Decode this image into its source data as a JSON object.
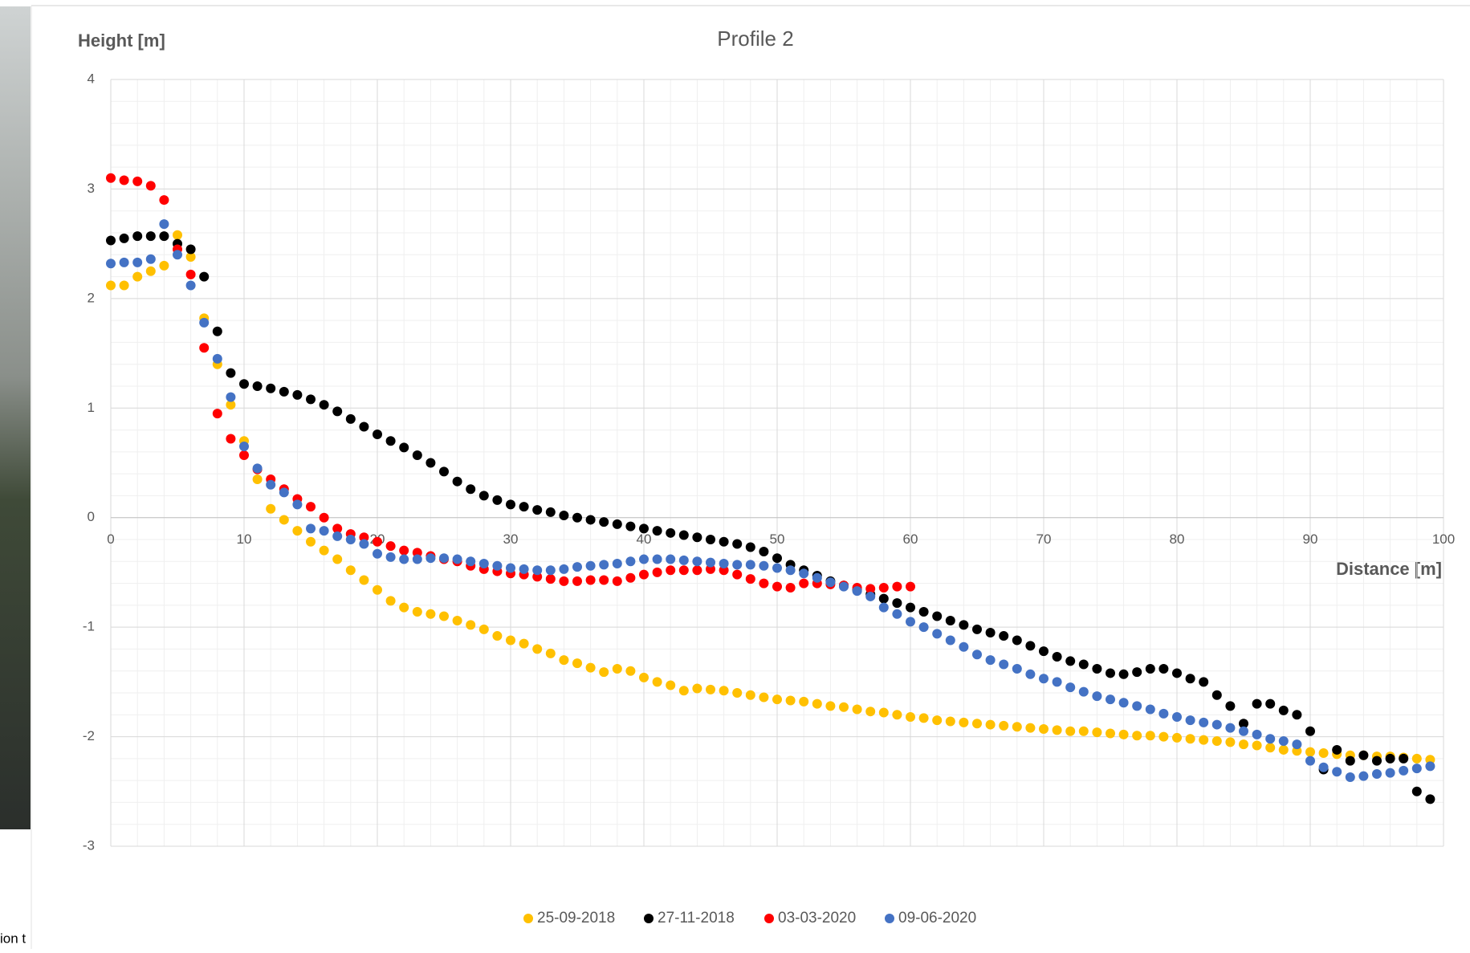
{
  "fragment_text": "ion t",
  "chart_data": {
    "type": "scatter",
    "title": "Profile 2",
    "y_label": "Height [m]",
    "x_label": "Distance [m]",
    "xlim": [
      0,
      100
    ],
    "xticks": [
      0,
      10,
      20,
      30,
      40,
      50,
      60,
      70,
      80,
      90,
      100
    ],
    "ylim": [
      -3,
      4
    ],
    "yticks": [
      -3,
      -2,
      -1,
      0,
      1,
      2,
      3,
      4
    ],
    "grid": true,
    "minor_grid": true,
    "legend": "bottom",
    "x": [
      0,
      1,
      2,
      3,
      4,
      5,
      6,
      7,
      8,
      9,
      10,
      11,
      12,
      13,
      14,
      15,
      16,
      17,
      18,
      19,
      20,
      21,
      22,
      23,
      24,
      25,
      26,
      27,
      28,
      29,
      30,
      31,
      32,
      33,
      34,
      35,
      36,
      37,
      38,
      39,
      40,
      41,
      42,
      43,
      44,
      45,
      46,
      47,
      48,
      49,
      50,
      51,
      52,
      53,
      54,
      55,
      56,
      57,
      58,
      59,
      60,
      61,
      62,
      63,
      64,
      65,
      66,
      67,
      68,
      69,
      70,
      71,
      72,
      73,
      74,
      75,
      76,
      77,
      78,
      79,
      80,
      81,
      82,
      83,
      84,
      85,
      86,
      87,
      88,
      89,
      90,
      91,
      92,
      93,
      94,
      95,
      96,
      97,
      98,
      99
    ],
    "series": [
      {
        "name": "25-09-2018",
        "color": "#FFC000",
        "values": [
          2.12,
          2.12,
          2.2,
          2.25,
          2.3,
          2.58,
          2.38,
          1.82,
          1.4,
          1.03,
          0.7,
          0.35,
          0.08,
          -0.02,
          -0.12,
          -0.22,
          -0.3,
          -0.38,
          -0.48,
          -0.57,
          -0.66,
          -0.76,
          -0.82,
          -0.86,
          -0.88,
          -0.9,
          -0.94,
          -0.98,
          -1.02,
          -1.08,
          -1.12,
          -1.15,
          -1.2,
          -1.24,
          -1.3,
          -1.33,
          -1.37,
          -1.41,
          -1.38,
          -1.4,
          -1.46,
          -1.5,
          -1.53,
          -1.58,
          -1.56,
          -1.57,
          -1.58,
          -1.6,
          -1.62,
          -1.64,
          -1.66,
          -1.67,
          -1.68,
          -1.7,
          -1.72,
          -1.73,
          -1.75,
          -1.77,
          -1.78,
          -1.8,
          -1.82,
          -1.83,
          -1.85,
          -1.86,
          -1.87,
          -1.88,
          -1.89,
          -1.9,
          -1.91,
          -1.92,
          -1.93,
          -1.94,
          -1.95,
          -1.95,
          -1.96,
          -1.97,
          -1.98,
          -1.99,
          -1.99,
          -2.0,
          -2.01,
          -2.02,
          -2.03,
          -2.04,
          -2.05,
          -2.07,
          -2.08,
          -2.1,
          -2.12,
          -2.13,
          -2.14,
          -2.15,
          -2.16,
          -2.17,
          -2.17,
          -2.18,
          -2.18,
          -2.19,
          -2.2,
          -2.21
        ]
      },
      {
        "name": "27-11-2018",
        "color": "#000000",
        "values": [
          2.53,
          2.55,
          2.57,
          2.57,
          2.57,
          2.5,
          2.45,
          2.2,
          1.7,
          1.32,
          1.22,
          1.2,
          1.18,
          1.15,
          1.12,
          1.08,
          1.03,
          0.97,
          0.9,
          0.83,
          0.76,
          0.7,
          0.64,
          0.57,
          0.5,
          0.42,
          0.33,
          0.26,
          0.2,
          0.16,
          0.12,
          0.1,
          0.07,
          0.05,
          0.02,
          0.0,
          -0.02,
          -0.04,
          -0.06,
          -0.08,
          -0.1,
          -0.12,
          -0.14,
          -0.16,
          -0.18,
          -0.2,
          -0.22,
          -0.24,
          -0.27,
          -0.31,
          -0.37,
          -0.43,
          -0.48,
          -0.53,
          -0.58,
          -0.62,
          -0.66,
          -0.7,
          -0.74,
          -0.78,
          -0.82,
          -0.86,
          -0.9,
          -0.94,
          -0.98,
          -1.02,
          -1.05,
          -1.08,
          -1.12,
          -1.17,
          -1.22,
          -1.27,
          -1.31,
          -1.34,
          -1.38,
          -1.42,
          -1.43,
          -1.41,
          -1.38,
          -1.38,
          -1.42,
          -1.47,
          -1.5,
          -1.62,
          -1.72,
          -1.88,
          -1.7,
          -1.7,
          -1.76,
          -1.8,
          -1.95,
          -2.3,
          -2.12,
          -2.22,
          -2.17,
          -2.22,
          -2.2,
          -2.2,
          -2.5,
          -2.57
        ]
      },
      {
        "name": "03-03-2020",
        "color": "#FF0000",
        "values": [
          3.1,
          3.08,
          3.07,
          3.03,
          2.9,
          2.45,
          2.22,
          1.55,
          0.95,
          0.72,
          0.57,
          0.44,
          0.35,
          0.26,
          0.17,
          0.1,
          0.0,
          -0.1,
          -0.15,
          -0.18,
          -0.22,
          -0.26,
          -0.3,
          -0.32,
          -0.35,
          -0.38,
          -0.4,
          -0.44,
          -0.47,
          -0.49,
          -0.51,
          -0.52,
          -0.54,
          -0.56,
          -0.58,
          -0.58,
          -0.57,
          -0.57,
          -0.58,
          -0.55,
          -0.52,
          -0.5,
          -0.48,
          -0.48,
          -0.48,
          -0.47,
          -0.48,
          -0.52,
          -0.56,
          -0.6,
          -0.63,
          -0.64,
          -0.6,
          -0.6,
          -0.61,
          -0.62,
          -0.64,
          -0.65,
          -0.64,
          -0.63,
          -0.63,
          null,
          null,
          null,
          null,
          null,
          null,
          null,
          null,
          null,
          null,
          null,
          null,
          null,
          null,
          null,
          null,
          null,
          null,
          null,
          null,
          null,
          null,
          null,
          null,
          null,
          null,
          null,
          null,
          null,
          null,
          null,
          null,
          null,
          null,
          null,
          null,
          null,
          null,
          null
        ]
      },
      {
        "name": "09-06-2020",
        "color": "#4472C4",
        "values": [
          2.32,
          2.33,
          2.33,
          2.36,
          2.68,
          2.4,
          2.12,
          1.78,
          1.45,
          1.1,
          0.65,
          0.45,
          0.3,
          0.23,
          0.12,
          -0.1,
          -0.12,
          -0.17,
          -0.2,
          -0.24,
          -0.33,
          -0.36,
          -0.38,
          -0.38,
          -0.37,
          -0.37,
          -0.38,
          -0.4,
          -0.42,
          -0.44,
          -0.46,
          -0.47,
          -0.48,
          -0.48,
          -0.47,
          -0.45,
          -0.44,
          -0.43,
          -0.42,
          -0.4,
          -0.38,
          -0.38,
          -0.38,
          -0.39,
          -0.4,
          -0.41,
          -0.42,
          -0.43,
          -0.43,
          -0.44,
          -0.46,
          -0.48,
          -0.51,
          -0.55,
          -0.59,
          -0.63,
          -0.67,
          -0.72,
          -0.82,
          -0.88,
          -0.95,
          -1.0,
          -1.06,
          -1.12,
          -1.18,
          -1.25,
          -1.3,
          -1.34,
          -1.38,
          -1.43,
          -1.47,
          -1.5,
          -1.55,
          -1.59,
          -1.63,
          -1.66,
          -1.69,
          -1.72,
          -1.75,
          -1.79,
          -1.82,
          -1.85,
          -1.87,
          -1.89,
          -1.92,
          -1.95,
          -1.98,
          -2.02,
          -2.04,
          -2.07,
          -2.22,
          -2.28,
          -2.32,
          -2.37,
          -2.36,
          -2.34,
          -2.33,
          -2.31,
          -2.29,
          -2.27
        ]
      }
    ]
  }
}
